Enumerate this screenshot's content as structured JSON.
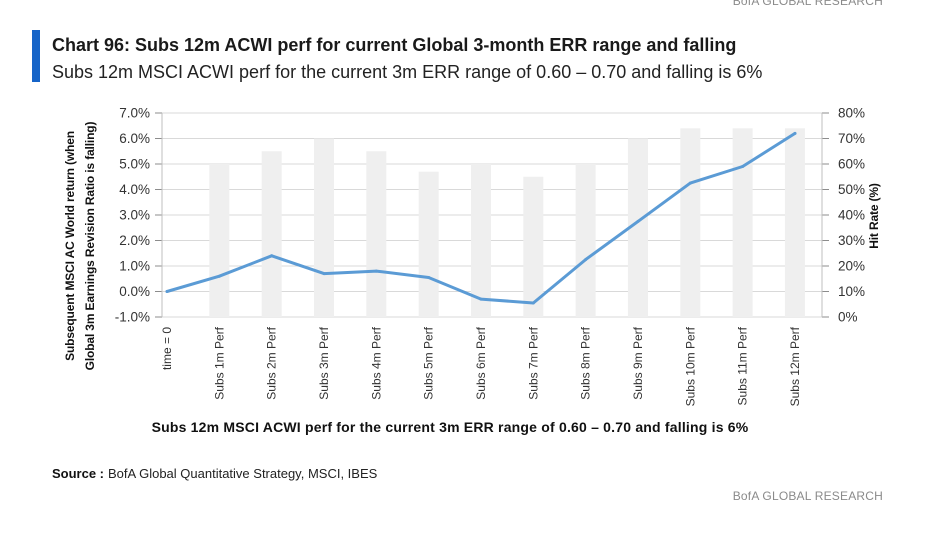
{
  "header": {
    "brand": "BofA GLOBAL RESEARCH"
  },
  "chart_data": {
    "type": "bar",
    "title": "Chart 96: Subs 12m ACWI perf for current Global 3-month ERR range and falling",
    "subtitle": "Subs 12m MSCI ACWI perf for the current 3m ERR range of 0.60 – 0.70 and falling is 6%",
    "caption": "Subs 12m MSCI ACWI perf for the current 3m ERR range of 0.60 – 0.70 and falling is 6%",
    "categories": [
      "time = 0",
      "Subs 1m Perf",
      "Subs 2m Perf",
      "Subs 3m Perf",
      "Subs 4m Perf",
      "Subs 5m Perf",
      "Subs 6m Perf",
      "Subs 7m Perf",
      "Subs 8m Perf",
      "Subs 9m Perf",
      "Subs 10m Perf",
      "Subs 11m Perf",
      "Subs 12m Perf"
    ],
    "y_left": {
      "label_lines": [
        "Subsequent MSCI AC World return (when",
        "Global 3m Earnings Revision Ratio is falling)"
      ],
      "min": -1,
      "max": 7,
      "step": 1,
      "tick_labels": [
        "-1.0%",
        "0.0%",
        "1.0%",
        "2.0%",
        "3.0%",
        "4.0%",
        "5.0%",
        "6.0%",
        "7.0%"
      ]
    },
    "y_right": {
      "label": "Hit Rate (%)",
      "min": 0,
      "max": 80,
      "step": 10,
      "tick_labels": [
        "0%",
        "10%",
        "20%",
        "30%",
        "40%",
        "50%",
        "60%",
        "70%",
        "80%"
      ]
    },
    "series": [
      {
        "type": "bar",
        "y_axis": "right",
        "color": "#efefef",
        "values": [
          null,
          60,
          65,
          70,
          65,
          57,
          60,
          55,
          60,
          70,
          74,
          74,
          74
        ]
      },
      {
        "type": "line",
        "y_axis": "left",
        "color": "#5b9bd5",
        "values": [
          0.0,
          0.6,
          1.4,
          0.7,
          0.8,
          0.55,
          -0.3,
          -0.45,
          1.25,
          2.75,
          4.25,
          4.9,
          6.2
        ]
      }
    ],
    "grid": true
  },
  "source": {
    "label": "Source :",
    "text": "BofA Global Quantitative Strategy, MSCI, IBES"
  },
  "footer": {
    "brand": "BofA GLOBAL RESEARCH"
  },
  "colors": {
    "accent": "#1664c8",
    "grid": "#d9d9d9",
    "brand_text": "#8a8a8a"
  }
}
